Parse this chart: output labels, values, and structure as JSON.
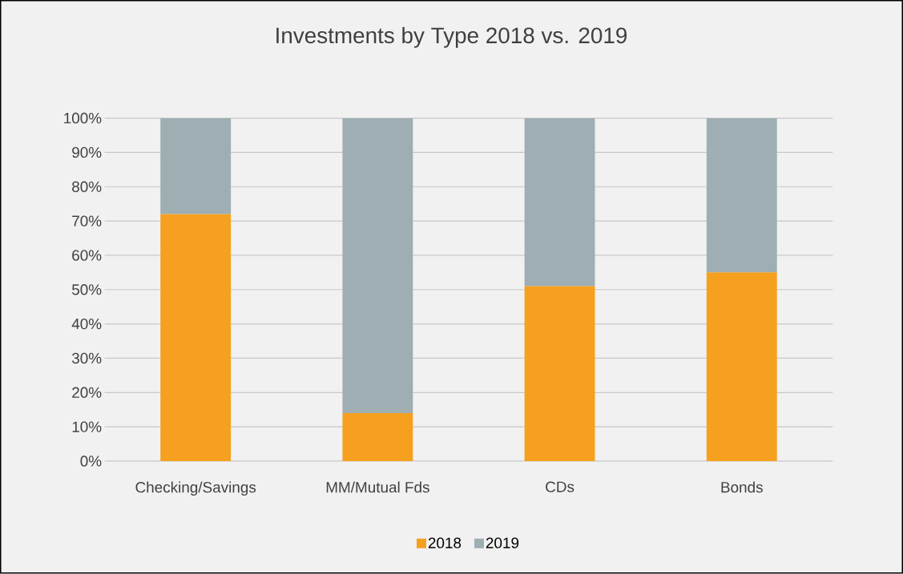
{
  "chart_data": {
    "type": "bar",
    "title": "Investments by Type 2018 vs. 2019",
    "stacked": true,
    "categories": [
      "Checking/Savings",
      "MM/Mutual Fds",
      "CDs",
      "Bonds"
    ],
    "series": [
      {
        "name": "2018",
        "color": "#f5a01f",
        "values": [
          72,
          14,
          51,
          55
        ]
      },
      {
        "name": "2019",
        "color": "#9eaeb3",
        "values": [
          28,
          86,
          49,
          45
        ]
      }
    ],
    "ylim": [
      0,
      100
    ],
    "yticks": [
      {
        "value": 0,
        "label": "0%"
      },
      {
        "value": 10,
        "label": "10%"
      },
      {
        "value": 20,
        "label": "20%"
      },
      {
        "value": 30,
        "label": "30%"
      },
      {
        "value": 40,
        "label": "40%"
      },
      {
        "value": 50,
        "label": "50%"
      },
      {
        "value": 60,
        "label": "60%"
      },
      {
        "value": 70,
        "label": "70%"
      },
      {
        "value": 80,
        "label": "80%"
      },
      {
        "value": 90,
        "label": "90%"
      },
      {
        "value": 100,
        "label": "100%"
      }
    ],
    "grid": "y",
    "legend": "bottom"
  }
}
